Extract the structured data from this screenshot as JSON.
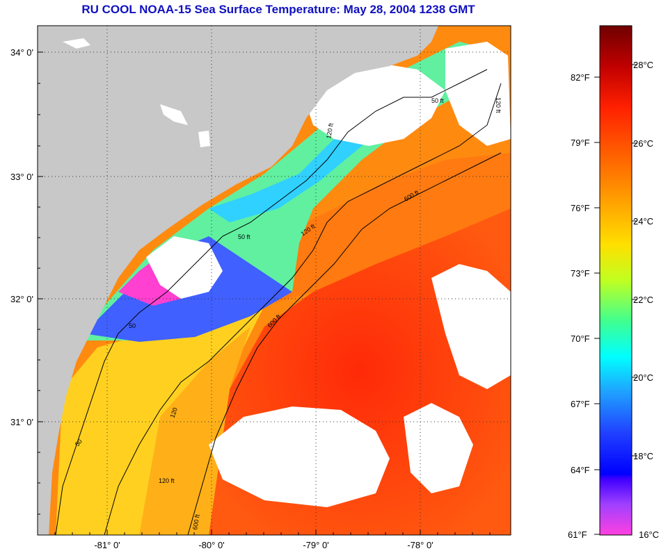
{
  "title": "RU COOL  NOAA-15  Sea Surface Temperature:  May 28, 2004 1238 GMT",
  "map": {
    "lat_ticks": [
      {
        "label": "34° 0'",
        "value": 34.0
      },
      {
        "label": "33° 0'",
        "value": 33.0
      },
      {
        "label": "32° 0'",
        "value": 32.0
      },
      {
        "label": "31° 0'",
        "value": 31.0
      }
    ],
    "lon_ticks": [
      {
        "label": "-81° 0'",
        "value": -81.0
      },
      {
        "label": "-80° 0'",
        "value": -80.0
      },
      {
        "label": "-79° 0'",
        "value": -79.0
      },
      {
        "label": "-78° 0'",
        "value": -78.0
      }
    ],
    "contour_labels": [
      {
        "text": "50 ft"
      },
      {
        "text": "120 ft"
      },
      {
        "text": "600 ft"
      },
      {
        "text": "50"
      },
      {
        "text": "120"
      },
      {
        "text": "600 ft"
      },
      {
        "text": "50 ft"
      },
      {
        "text": "120 ft"
      },
      {
        "text": "600 ft"
      },
      {
        "text": "120 ft"
      },
      {
        "text": "50"
      },
      {
        "text": "120 ft"
      }
    ],
    "colors": {
      "land": "#c8c8c8",
      "cloud": "#ffffff",
      "warm": "#ff3a10",
      "mid": "#ff9a10",
      "shelf": "#ffe020",
      "cool": "#30e0ff",
      "cold": "#3040ff",
      "coldest": "#ff40d0"
    }
  },
  "colorbar": {
    "fahrenheit": [
      "82°F",
      "79°F",
      "76°F",
      "73°F",
      "70°F",
      "67°F",
      "64°F",
      "61°F"
    ],
    "celsius": [
      "28°C",
      "26°C",
      "24°C",
      "22°C",
      "20°C",
      "18°C",
      "16°C"
    ]
  }
}
